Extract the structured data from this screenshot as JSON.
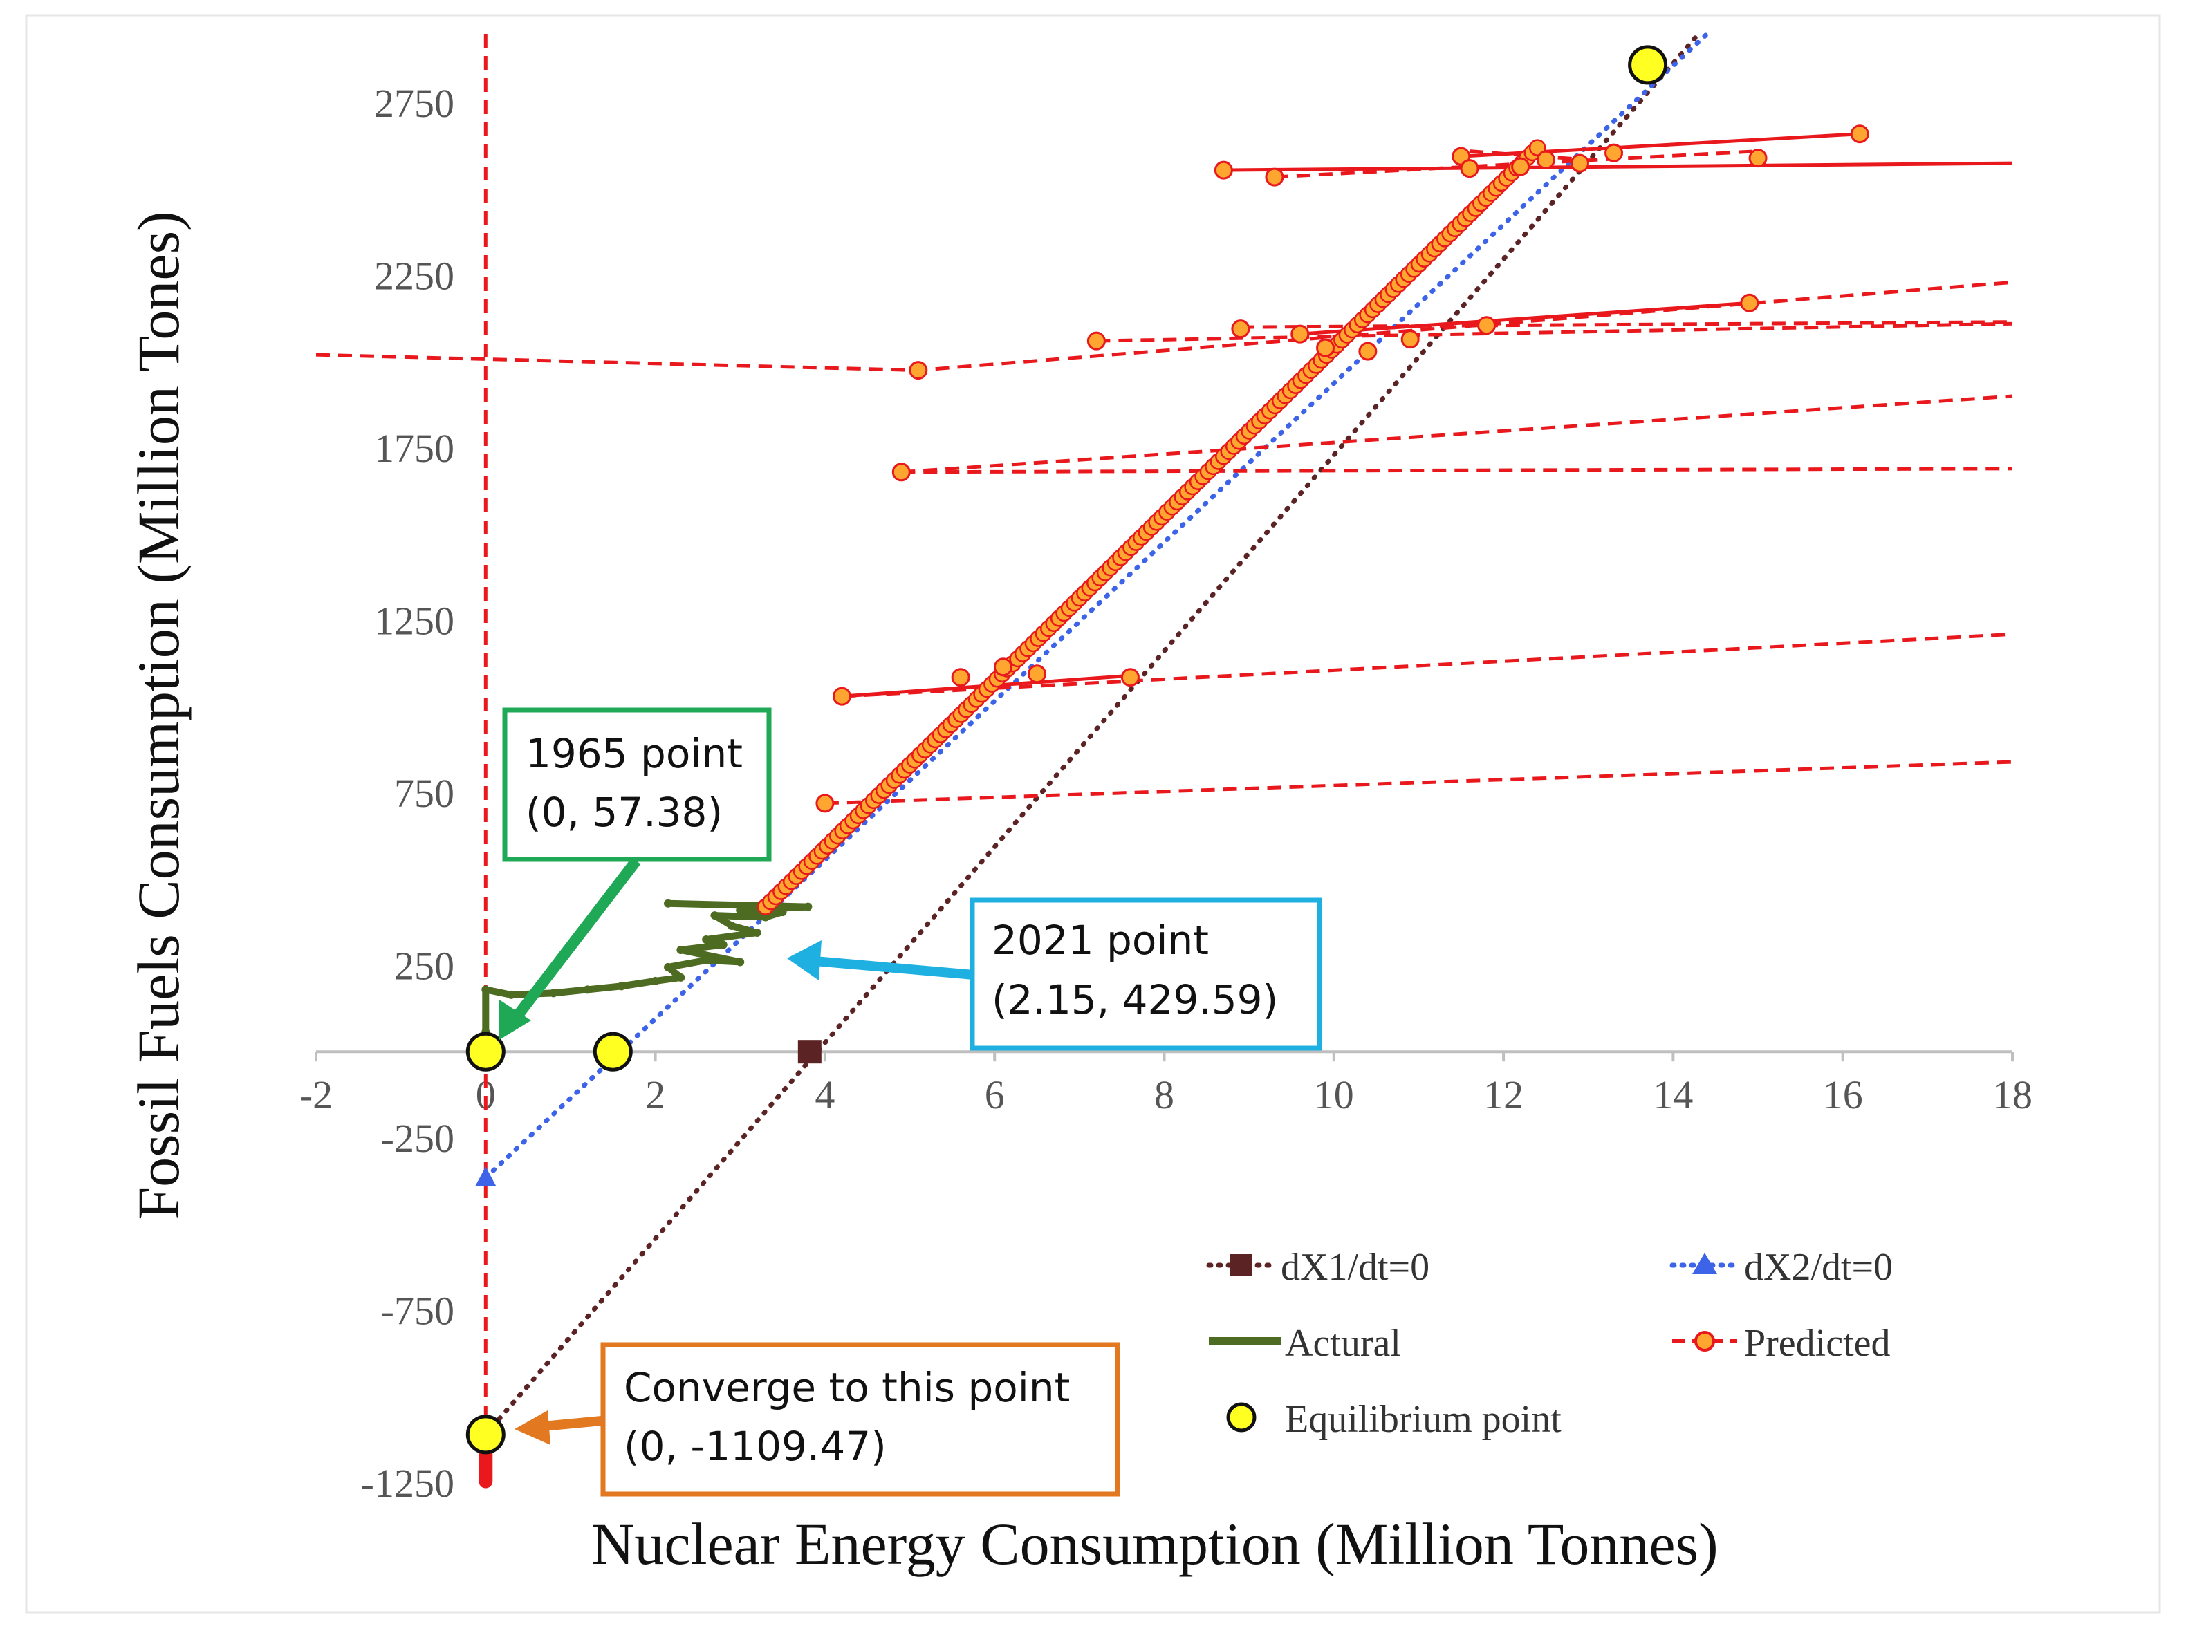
{
  "chart_data": {
    "type": "scatter",
    "xlabel": "Nuclear Energy Consumption (Million Tonnes)",
    "ylabel": "Fossil Fuels Consumption (Million Tones)",
    "xlim": [
      -2,
      18
    ],
    "ylim": [
      -1250,
      2950
    ],
    "xticks": [
      -2,
      0,
      2,
      4,
      6,
      8,
      10,
      12,
      14,
      16,
      18
    ],
    "xtick_labels": [
      "-2",
      "0",
      "2",
      "4",
      "6",
      "8",
      "10",
      "12",
      "14",
      "16",
      "18"
    ],
    "yticks": [
      2750,
      2250,
      1750,
      1250,
      750,
      250,
      -250,
      -750,
      -1250
    ],
    "ytick_labels": [
      "2750",
      "2250",
      "1750",
      "1250",
      "750",
      "250",
      "-250",
      "-750",
      "-1250"
    ],
    "grid": false,
    "legend_position": "bottom-right",
    "legend": {
      "dx1": "dX1/dt=0",
      "dx2": "dX2/dt=0",
      "actual": "Actural",
      "predicted": "Predicted",
      "equilibrium": "Equilibrium point"
    },
    "colors": {
      "dx1": "#5b2324",
      "dx2": "#3d63e8",
      "actual": "#4d6b21",
      "predicted": "#e8181c",
      "predicted_marker": "#ffa630",
      "equilibrium": "#ffff22",
      "callout_1965": "#1fa855",
      "callout_2021": "#1fb0e2",
      "callout_converge": "#e2781f"
    },
    "series": [
      {
        "name": "dX1/dt=0",
        "style": "dotted",
        "points": [
          [
            0,
            -1109.47
          ],
          [
            14.3,
            2950
          ]
        ],
        "marker_points": [
          [
            3.82,
            0
          ]
        ]
      },
      {
        "name": "dX2/dt=0",
        "style": "dotted",
        "points": [
          [
            0,
            -365
          ],
          [
            14.4,
            2950
          ]
        ],
        "marker_points": [
          [
            0,
            -365
          ]
        ]
      },
      {
        "name": "Actural",
        "style": "solid",
        "points": [
          [
            0,
            0
          ],
          [
            0,
            57.38
          ],
          [
            0,
            180
          ],
          [
            0.3,
            165
          ],
          [
            0.8,
            170
          ],
          [
            1.2,
            180
          ],
          [
            1.6,
            190
          ],
          [
            2.0,
            205
          ],
          [
            2.3,
            215
          ],
          [
            2.15,
            245
          ],
          [
            2.6,
            265
          ],
          [
            3.0,
            260
          ],
          [
            2.3,
            295
          ],
          [
            2.8,
            310
          ],
          [
            2.6,
            325
          ],
          [
            3.2,
            345
          ],
          [
            2.9,
            365
          ],
          [
            2.7,
            395
          ],
          [
            3.3,
            390
          ],
          [
            3.5,
            405
          ],
          [
            3.0,
            410
          ],
          [
            3.8,
            420
          ],
          [
            2.15,
            429.59
          ]
        ]
      },
      {
        "name": "Predicted-trend",
        "style": "solid-markers",
        "points": [
          [
            3.3,
            420
          ],
          [
            12.4,
            2620
          ]
        ]
      },
      {
        "name": "Predicted-solid",
        "style": "solid",
        "segments": [
          [
            [
              4.2,
              1030
            ],
            [
              7.6,
              1090
            ]
          ],
          [
            [
              11.5,
              2595
            ],
            [
              16.2,
              2660
            ]
          ],
          [
            [
              9.6,
              2080
            ],
            [
              14.9,
              2170
            ]
          ],
          [
            [
              8.7,
              2555
            ],
            [
              18.0,
              2575
            ]
          ]
        ]
      },
      {
        "name": "Predicted-dashed",
        "style": "dashed",
        "segments": [
          [
            [
              -2,
              2020
            ],
            [
              5.1,
              1975
            ],
            [
              18.0,
              2230
            ]
          ],
          [
            [
              4.0,
              720
            ],
            [
              18.0,
              840
            ]
          ],
          [
            [
              4.2,
              1030
            ],
            [
              18.0,
              1210
            ]
          ],
          [
            [
              4.9,
              1680
            ],
            [
              18.0,
              1900
            ]
          ],
          [
            [
              4.9,
              1680
            ],
            [
              18.0,
              1690
            ]
          ],
          [
            [
              7.2,
              2060
            ],
            [
              18.0,
              2110
            ]
          ],
          [
            [
              8.9,
              2100
            ],
            [
              18.0,
              2115
            ]
          ],
          [
            [
              9.3,
              2535
            ],
            [
              15.0,
              2610
            ]
          ],
          [
            [
              11.6,
              2610
            ],
            [
              13.0,
              2585
            ]
          ],
          [
            [
              0,
              2950
            ],
            [
              0,
              -1250
            ]
          ]
        ],
        "marker_points": [
          [
            5.1,
            1975
          ],
          [
            4.0,
            720
          ],
          [
            4.2,
            1030
          ],
          [
            5.6,
            1085
          ],
          [
            6.1,
            1115
          ],
          [
            6.5,
            1095
          ],
          [
            7.6,
            1085
          ],
          [
            4.9,
            1680
          ],
          [
            7.2,
            2060
          ],
          [
            8.9,
            2095
          ],
          [
            9.6,
            2080
          ],
          [
            9.9,
            2040
          ],
          [
            10.4,
            2030
          ],
          [
            10.9,
            2065
          ],
          [
            11.8,
            2105
          ],
          [
            14.9,
            2170
          ],
          [
            8.7,
            2555
          ],
          [
            9.3,
            2535
          ],
          [
            11.5,
            2595
          ],
          [
            11.6,
            2560
          ],
          [
            12.2,
            2565
          ],
          [
            12.5,
            2585
          ],
          [
            12.9,
            2575
          ],
          [
            13.3,
            2605
          ],
          [
            15.0,
            2590
          ],
          [
            16.2,
            2660
          ]
        ]
      },
      {
        "name": "Equilibrium point",
        "style": "markers",
        "points": [
          [
            0,
            0
          ],
          [
            1.5,
            0
          ],
          [
            0,
            -1109.47
          ],
          [
            13.7,
            2860
          ]
        ]
      }
    ],
    "annotations": [
      {
        "id": "1965",
        "line1": "1965 point",
        "line2": "(0, 57.38)",
        "target": [
          0,
          57.38
        ]
      },
      {
        "id": "2021",
        "line1": "2021 point",
        "line2": "(2.15, 429.59)",
        "target": [
          3.6,
          290
        ]
      },
      {
        "id": "converge",
        "line1": "Converge to this point",
        "line2": "(0, -1109.47)",
        "target": [
          0,
          -1109.47
        ]
      }
    ]
  }
}
